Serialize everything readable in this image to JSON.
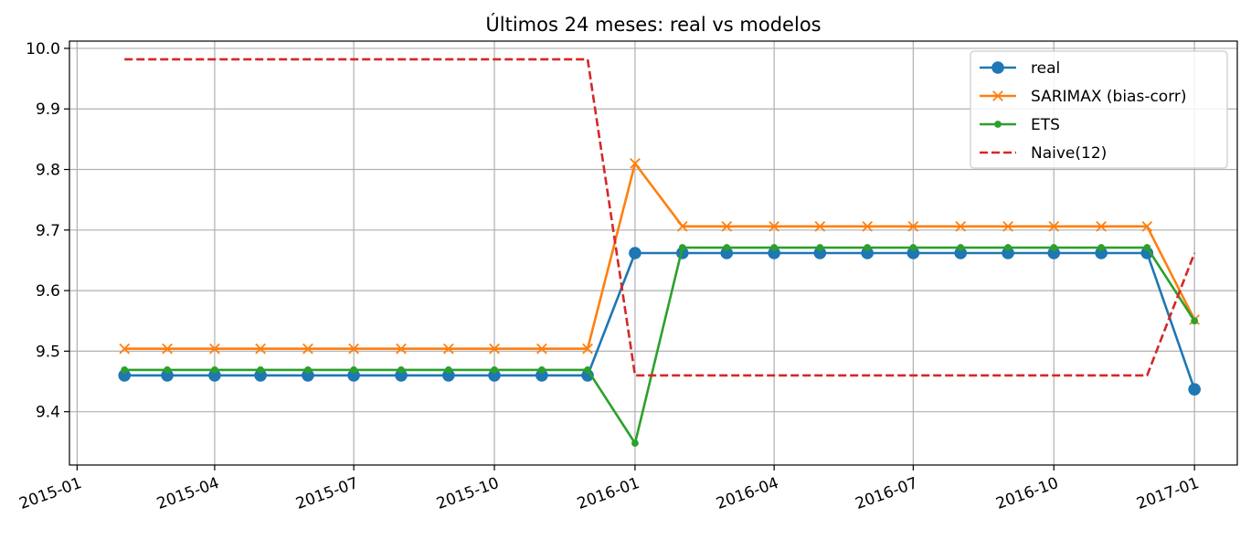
{
  "chart_data": {
    "type": "line",
    "title": "Últimos 24 meses: real vs modelos",
    "xlabel": "",
    "ylabel": "",
    "x": [
      "2015-02-01",
      "2015-03-01",
      "2015-04-01",
      "2015-05-01",
      "2015-06-01",
      "2015-07-01",
      "2015-08-01",
      "2015-09-01",
      "2015-10-01",
      "2015-11-01",
      "2015-12-01",
      "2016-01-01",
      "2016-02-01",
      "2016-03-01",
      "2016-04-01",
      "2016-05-01",
      "2016-06-01",
      "2016-07-01",
      "2016-08-01",
      "2016-09-01",
      "2016-10-01",
      "2016-11-01",
      "2016-12-01",
      "2017-01-01"
    ],
    "xlim": [
      "2014-12-27",
      "2017-01-29"
    ],
    "ylim": [
      9.312,
      10.012
    ],
    "xticks": [
      "2015-01",
      "2015-04",
      "2015-07",
      "2015-10",
      "2016-01",
      "2016-04",
      "2016-07",
      "2016-10",
      "2017-01"
    ],
    "yticks": [
      "9.4",
      "9.5",
      "9.6",
      "9.7",
      "9.8",
      "9.9",
      "10.0"
    ],
    "grid": true,
    "legend_position": "top-right",
    "series": [
      {
        "name": "real",
        "color": "#1f77b4",
        "marker": "circle",
        "dash": "solid",
        "values": [
          9.46,
          9.46,
          9.46,
          9.46,
          9.46,
          9.46,
          9.46,
          9.46,
          9.46,
          9.46,
          9.46,
          9.662,
          9.662,
          9.662,
          9.662,
          9.662,
          9.662,
          9.662,
          9.662,
          9.662,
          9.662,
          9.662,
          9.662,
          9.437
        ]
      },
      {
        "name": "SARIMAX (bias-corr)",
        "color": "#ff7f0e",
        "marker": "x",
        "dash": "solid",
        "values": [
          9.504,
          9.504,
          9.504,
          9.504,
          9.504,
          9.504,
          9.504,
          9.504,
          9.504,
          9.504,
          9.504,
          9.81,
          9.706,
          9.706,
          9.706,
          9.706,
          9.706,
          9.706,
          9.706,
          9.706,
          9.706,
          9.706,
          9.706,
          9.552
        ]
      },
      {
        "name": "ETS",
        "color": "#2ca02c",
        "marker": "dot",
        "dash": "solid",
        "values": [
          9.469,
          9.469,
          9.469,
          9.469,
          9.469,
          9.469,
          9.469,
          9.469,
          9.469,
          9.469,
          9.469,
          9.348,
          9.671,
          9.671,
          9.671,
          9.671,
          9.671,
          9.671,
          9.671,
          9.671,
          9.671,
          9.671,
          9.671,
          9.55
        ]
      },
      {
        "name": "Naive(12)",
        "color": "#d62728",
        "marker": "none",
        "dash": "dashed",
        "values": [
          9.982,
          9.982,
          9.982,
          9.982,
          9.982,
          9.982,
          9.982,
          9.982,
          9.982,
          9.982,
          9.982,
          9.46,
          9.46,
          9.46,
          9.46,
          9.46,
          9.46,
          9.46,
          9.46,
          9.46,
          9.46,
          9.46,
          9.46,
          9.662
        ]
      }
    ]
  }
}
